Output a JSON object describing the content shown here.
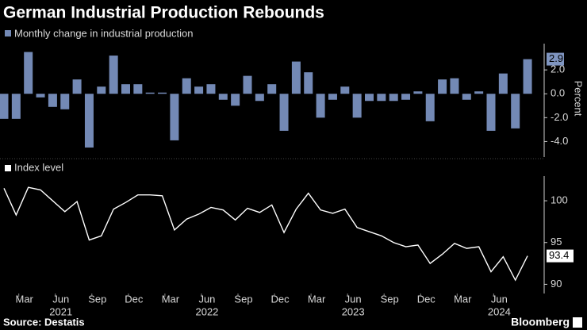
{
  "title": "German Industrial Production Rebounds",
  "source": "Source: Destatis",
  "brand": "Bloomberg",
  "chart_data": [
    {
      "type": "bar",
      "legend": "Monthly change in industrial production",
      "color": "#7389b5",
      "axis_label": "Percent",
      "values": [
        -2.1,
        -2.1,
        3.5,
        -0.3,
        -1.1,
        -1.3,
        1.2,
        -4.5,
        0.6,
        3.2,
        0.8,
        0.8,
        0.1,
        0.1,
        -3.9,
        1.3,
        0.6,
        0.8,
        -0.5,
        -1.0,
        1.5,
        -0.6,
        0.8,
        -3.1,
        2.7,
        1.8,
        -2.0,
        -0.5,
        0.6,
        -2.0,
        -0.6,
        -0.6,
        -0.6,
        -0.5,
        0.2,
        -2.3,
        1.2,
        1.3,
        -0.5,
        0.2,
        -3.1,
        1.7,
        -2.9,
        2.9
      ],
      "last_value_label": "2.9",
      "ylim": [
        -5.3,
        4.2
      ],
      "yticks": [
        {
          "value": 2,
          "label": "2.0"
        },
        {
          "value": 0,
          "label": "0.0"
        },
        {
          "value": -2,
          "label": "-2.0"
        },
        {
          "value": -4,
          "label": "-4.0"
        }
      ]
    },
    {
      "type": "line",
      "legend": "Index level",
      "color": "#ffffff",
      "categories": [
        null,
        null,
        "Mar",
        null,
        null,
        "Jun",
        null,
        null,
        "Sep",
        null,
        null,
        "Dec",
        null,
        null,
        "Mar",
        null,
        null,
        "Jun",
        null,
        null,
        "Sep",
        null,
        null,
        "Dec",
        null,
        null,
        "Mar",
        null,
        null,
        "Jun",
        null,
        null,
        "Sep",
        null,
        null,
        "Dec",
        null,
        null,
        "Mar",
        null,
        null,
        "Jun",
        null,
        null
      ],
      "category_years": [
        null,
        null,
        null,
        null,
        null,
        "2021",
        null,
        null,
        null,
        null,
        null,
        null,
        null,
        null,
        null,
        null,
        null,
        "2022",
        null,
        null,
        null,
        null,
        null,
        null,
        null,
        null,
        null,
        null,
        null,
        "2023",
        null,
        null,
        null,
        null,
        null,
        null,
        null,
        null,
        null,
        null,
        null,
        "2024",
        null,
        null
      ],
      "values": [
        101.5,
        98.3,
        101.6,
        101.3,
        100.0,
        98.7,
        99.9,
        95.3,
        95.8,
        99.0,
        99.8,
        100.7,
        100.7,
        100.6,
        96.5,
        97.8,
        98.4,
        99.2,
        98.9,
        97.7,
        99.1,
        98.6,
        99.5,
        96.2,
        99.0,
        100.9,
        98.9,
        98.5,
        99.0,
        96.8,
        96.3,
        95.8,
        95.0,
        94.5,
        94.7,
        92.5,
        93.6,
        94.9,
        94.3,
        94.5,
        91.5,
        93.3,
        90.5,
        93.4
      ],
      "ylim": [
        88.9,
        102.95
      ],
      "yticks": [
        100,
        95,
        90
      ]
    }
  ]
}
